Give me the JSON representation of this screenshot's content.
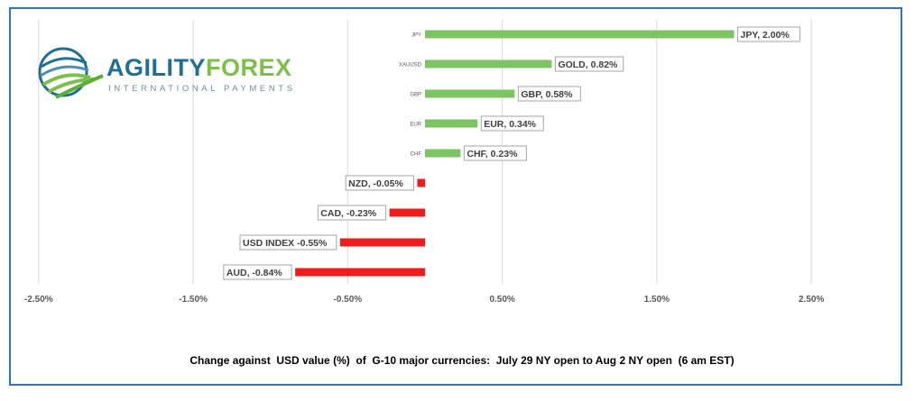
{
  "logo": {
    "name_part1": "AGILITY",
    "name_part2": "FOREX",
    "tagline": "INTERNATIONAL PAYMENTS",
    "colors": {
      "primary": "#1f6f93",
      "secondary": "#7cc04b"
    }
  },
  "chart_data": {
    "type": "bar",
    "orientation": "horizontal",
    "title": "Change against  USD value (%)  of  G-10 major currencies:  July 29 NY open to Aug 2 NY open  (6 am EST)",
    "categories": [
      "JPY",
      "XAUUSD",
      "GBP",
      "EUR",
      "CHF",
      "NZD",
      "CAD",
      "USD INDEX",
      "AUD"
    ],
    "category_axis_labels": [
      "JPY",
      "XAUUSD",
      "GBP",
      "EUR",
      "CHF",
      "",
      "",
      "",
      ""
    ],
    "values": [
      2.0,
      0.82,
      0.58,
      0.34,
      0.23,
      -0.05,
      -0.23,
      -0.55,
      -0.84
    ],
    "data_labels": [
      "JPY, 2.00%",
      "GOLD, 0.82%",
      "GBP, 0.58%",
      "EUR, 0.34%",
      "CHF, 0.23%",
      "NZD, -0.05%",
      "CAD, -0.23%",
      "USD INDEX -0.55%",
      "AUD, -0.84%"
    ],
    "xlim": [
      -2.75,
      2.75
    ],
    "x_ticks": [
      -2.5,
      -1.5,
      -0.5,
      0.5,
      1.5,
      2.5
    ],
    "x_tick_labels": [
      "-2.50%",
      "-1.50%",
      "-0.50%",
      "0.50%",
      "1.50%",
      "2.50%"
    ],
    "grid": "vertical",
    "colors": {
      "positive": "#7dc462",
      "negative": "#ee1c1c",
      "grid": "#d9d9d9"
    }
  }
}
